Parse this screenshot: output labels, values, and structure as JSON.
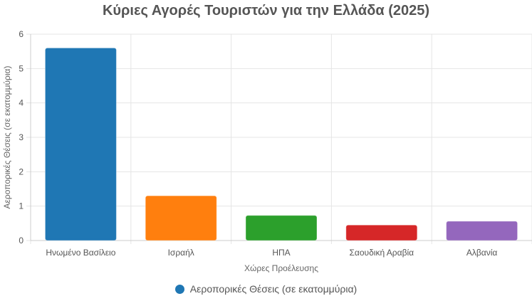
{
  "chart_data": {
    "type": "bar",
    "title": "Κύριες Αγορές Τουριστών για την Ελλάδα (2025)",
    "xlabel": "Χώρες Προέλευσης",
    "ylabel": "Αεροπορικές Θέσεις (σε εκατομμύρια)",
    "categories": [
      "Ηνωμένο Βασίλειο",
      "Ισραήλ",
      "ΗΠΑ",
      "Σαουδική Αραβία",
      "Αλβανία"
    ],
    "series": [
      {
        "name": "Αεροπορικές Θέσεις (σε εκατομμύρια)",
        "values": [
          5.6,
          1.3,
          0.73,
          0.45,
          0.56
        ],
        "colors": [
          "#1f77b4",
          "#ff7f0e",
          "#2ca02c",
          "#d62728",
          "#9467bd"
        ]
      }
    ],
    "ylim": [
      0,
      6
    ],
    "yticks": [
      "0",
      "1",
      "2",
      "3",
      "4",
      "5",
      "6"
    ],
    "grid": true,
    "legend_position": "bottom"
  }
}
